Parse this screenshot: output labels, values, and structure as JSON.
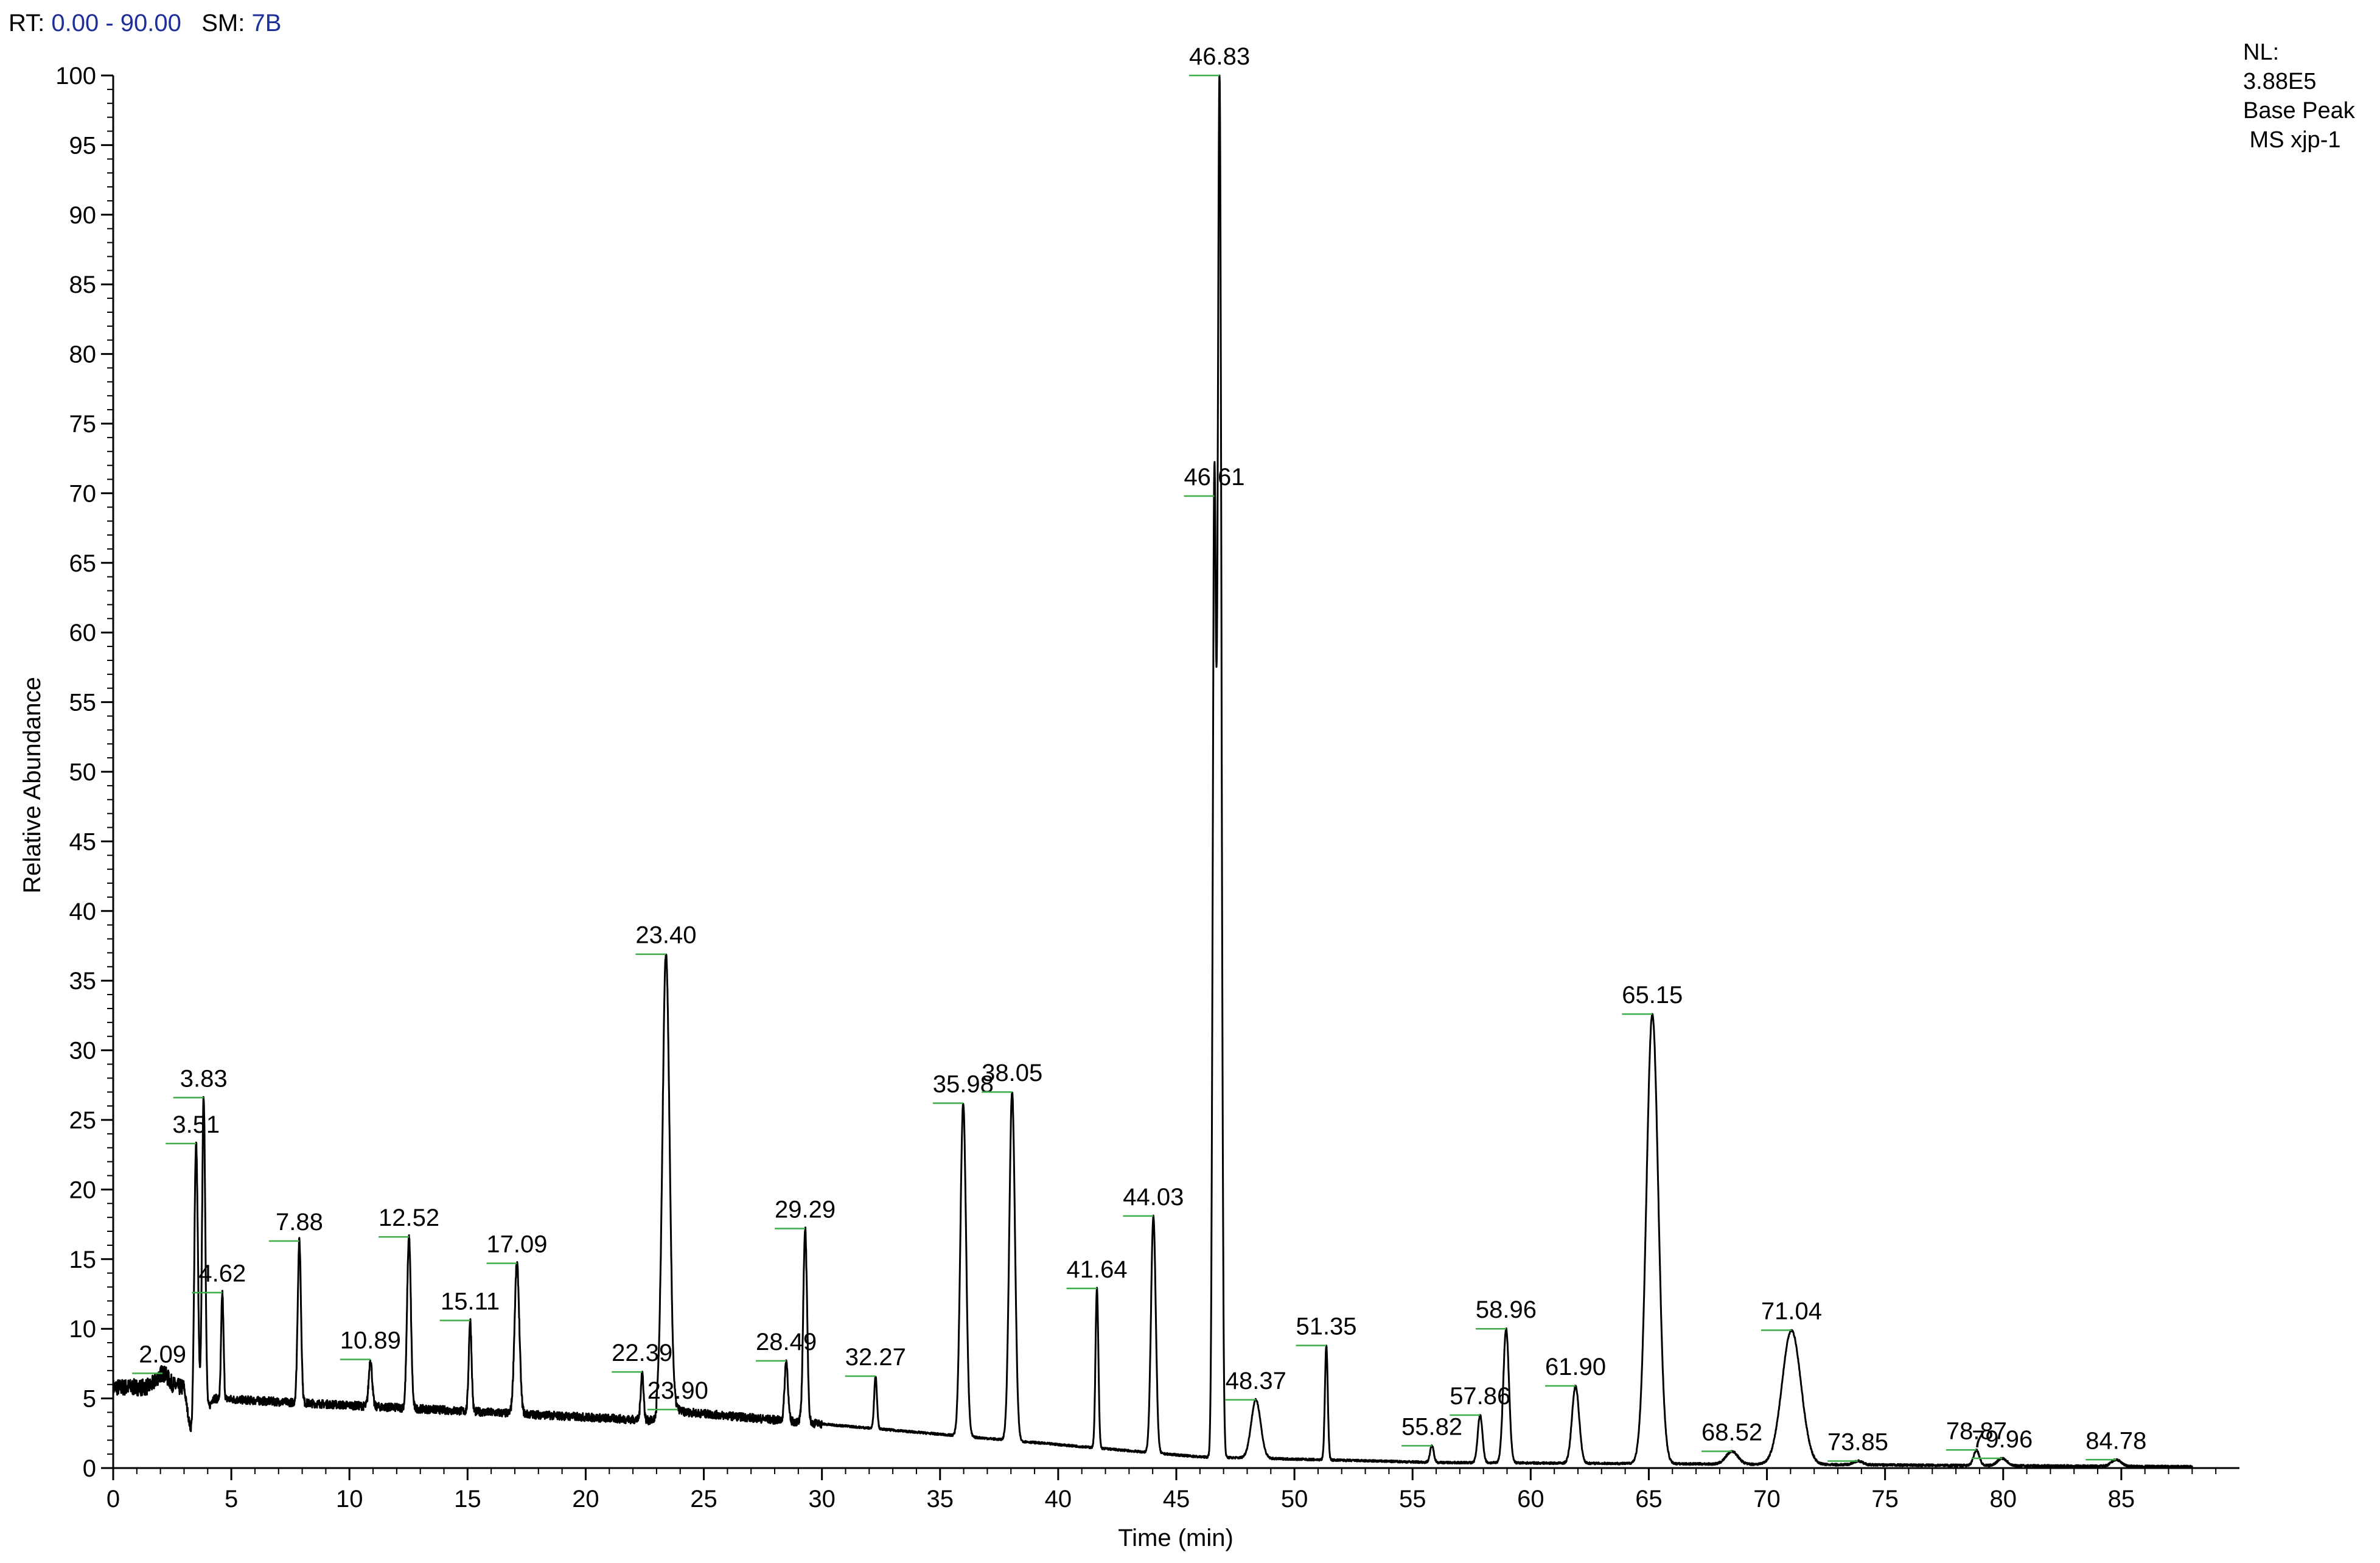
{
  "header": {
    "rt_label": "RT:",
    "rt_value": "0.00 - 90.00",
    "sm_label": "SM:",
    "sm_value": "7B"
  },
  "info_panel": {
    "nl_label": "NL:",
    "nl_value": "3.88E5",
    "trace_type": "Base Peak",
    "filename": " MS xjp-1"
  },
  "chart_data": {
    "type": "line",
    "xlabel": "Time (min)",
    "ylabel": "Relative Abundance",
    "xlim": [
      0,
      90
    ],
    "ylim": [
      0,
      100
    ],
    "x_ticks": [
      0,
      5,
      10,
      15,
      20,
      25,
      30,
      35,
      40,
      45,
      50,
      55,
      60,
      65,
      70,
      75,
      80,
      85
    ],
    "y_ticks": [
      0,
      5,
      10,
      15,
      20,
      25,
      30,
      35,
      40,
      45,
      50,
      55,
      60,
      65,
      70,
      75,
      80,
      85,
      90,
      95,
      100
    ],
    "grid": false,
    "legend": "none",
    "line_color": "#000000",
    "marker_color": "#3fae49",
    "peaks": [
      {
        "rt": 2.09,
        "label": "2.09",
        "height": 6.8,
        "width": 0.25
      },
      {
        "rt": 3.51,
        "label": "3.51",
        "height": 23.3,
        "width": 0.08
      },
      {
        "rt": 3.83,
        "label": "3.83",
        "height": 26.6,
        "width": 0.07
      },
      {
        "rt": 4.62,
        "label": "4.62",
        "height": 12.6,
        "width": 0.05
      },
      {
        "rt": 7.88,
        "label": "7.88",
        "height": 16.3,
        "width": 0.07
      },
      {
        "rt": 10.89,
        "label": "10.89",
        "height": 7.8,
        "width": 0.07
      },
      {
        "rt": 12.52,
        "label": "12.52",
        "height": 16.6,
        "width": 0.08
      },
      {
        "rt": 15.11,
        "label": "15.11",
        "height": 10.6,
        "width": 0.06
      },
      {
        "rt": 17.09,
        "label": "17.09",
        "height": 14.7,
        "width": 0.1
      },
      {
        "rt": 22.39,
        "label": "22.39",
        "height": 6.9,
        "width": 0.06
      },
      {
        "rt": 23.4,
        "label": "23.40",
        "height": 36.9,
        "width": 0.15
      },
      {
        "rt": 23.9,
        "label": "23.90",
        "height": 4.2,
        "width": 0.1
      },
      {
        "rt": 28.49,
        "label": "28.49",
        "height": 7.7,
        "width": 0.07
      },
      {
        "rt": 29.29,
        "label": "29.29",
        "height": 17.2,
        "width": 0.08
      },
      {
        "rt": 32.27,
        "label": "32.27",
        "height": 6.6,
        "width": 0.06
      },
      {
        "rt": 35.98,
        "label": "35.98",
        "height": 26.2,
        "width": 0.12
      },
      {
        "rt": 38.05,
        "label": "38.05",
        "height": 27.0,
        "width": 0.12
      },
      {
        "rt": 41.64,
        "label": "41.64",
        "height": 12.9,
        "width": 0.06
      },
      {
        "rt": 44.03,
        "label": "44.03",
        "height": 18.1,
        "width": 0.1
      },
      {
        "rt": 46.61,
        "label": "46.61",
        "height": 69.8,
        "width": 0.07
      },
      {
        "rt": 46.83,
        "label": "46.83",
        "height": 100.0,
        "width": 0.08
      },
      {
        "rt": 48.37,
        "label": "48.37",
        "height": 4.9,
        "width": 0.2
      },
      {
        "rt": 51.35,
        "label": "51.35",
        "height": 8.8,
        "width": 0.06
      },
      {
        "rt": 55.82,
        "label": "55.82",
        "height": 1.6,
        "width": 0.08
      },
      {
        "rt": 57.86,
        "label": "57.86",
        "height": 3.8,
        "width": 0.1
      },
      {
        "rt": 58.96,
        "label": "58.96",
        "height": 10.0,
        "width": 0.12
      },
      {
        "rt": 61.9,
        "label": "61.90",
        "height": 5.9,
        "width": 0.15
      },
      {
        "rt": 65.15,
        "label": "65.15",
        "height": 32.6,
        "width": 0.25
      },
      {
        "rt": 68.52,
        "label": "68.52",
        "height": 1.2,
        "width": 0.25
      },
      {
        "rt": 71.04,
        "label": "71.04",
        "height": 9.9,
        "width": 0.4
      },
      {
        "rt": 73.85,
        "label": "73.85",
        "height": 0.5,
        "width": 0.2
      },
      {
        "rt": 78.87,
        "label": "78.87",
        "height": 1.3,
        "width": 0.12
      },
      {
        "rt": 79.96,
        "label": "79.96",
        "height": 0.7,
        "width": 0.2
      },
      {
        "rt": 84.78,
        "label": "84.78",
        "height": 0.6,
        "width": 0.2
      }
    ]
  }
}
